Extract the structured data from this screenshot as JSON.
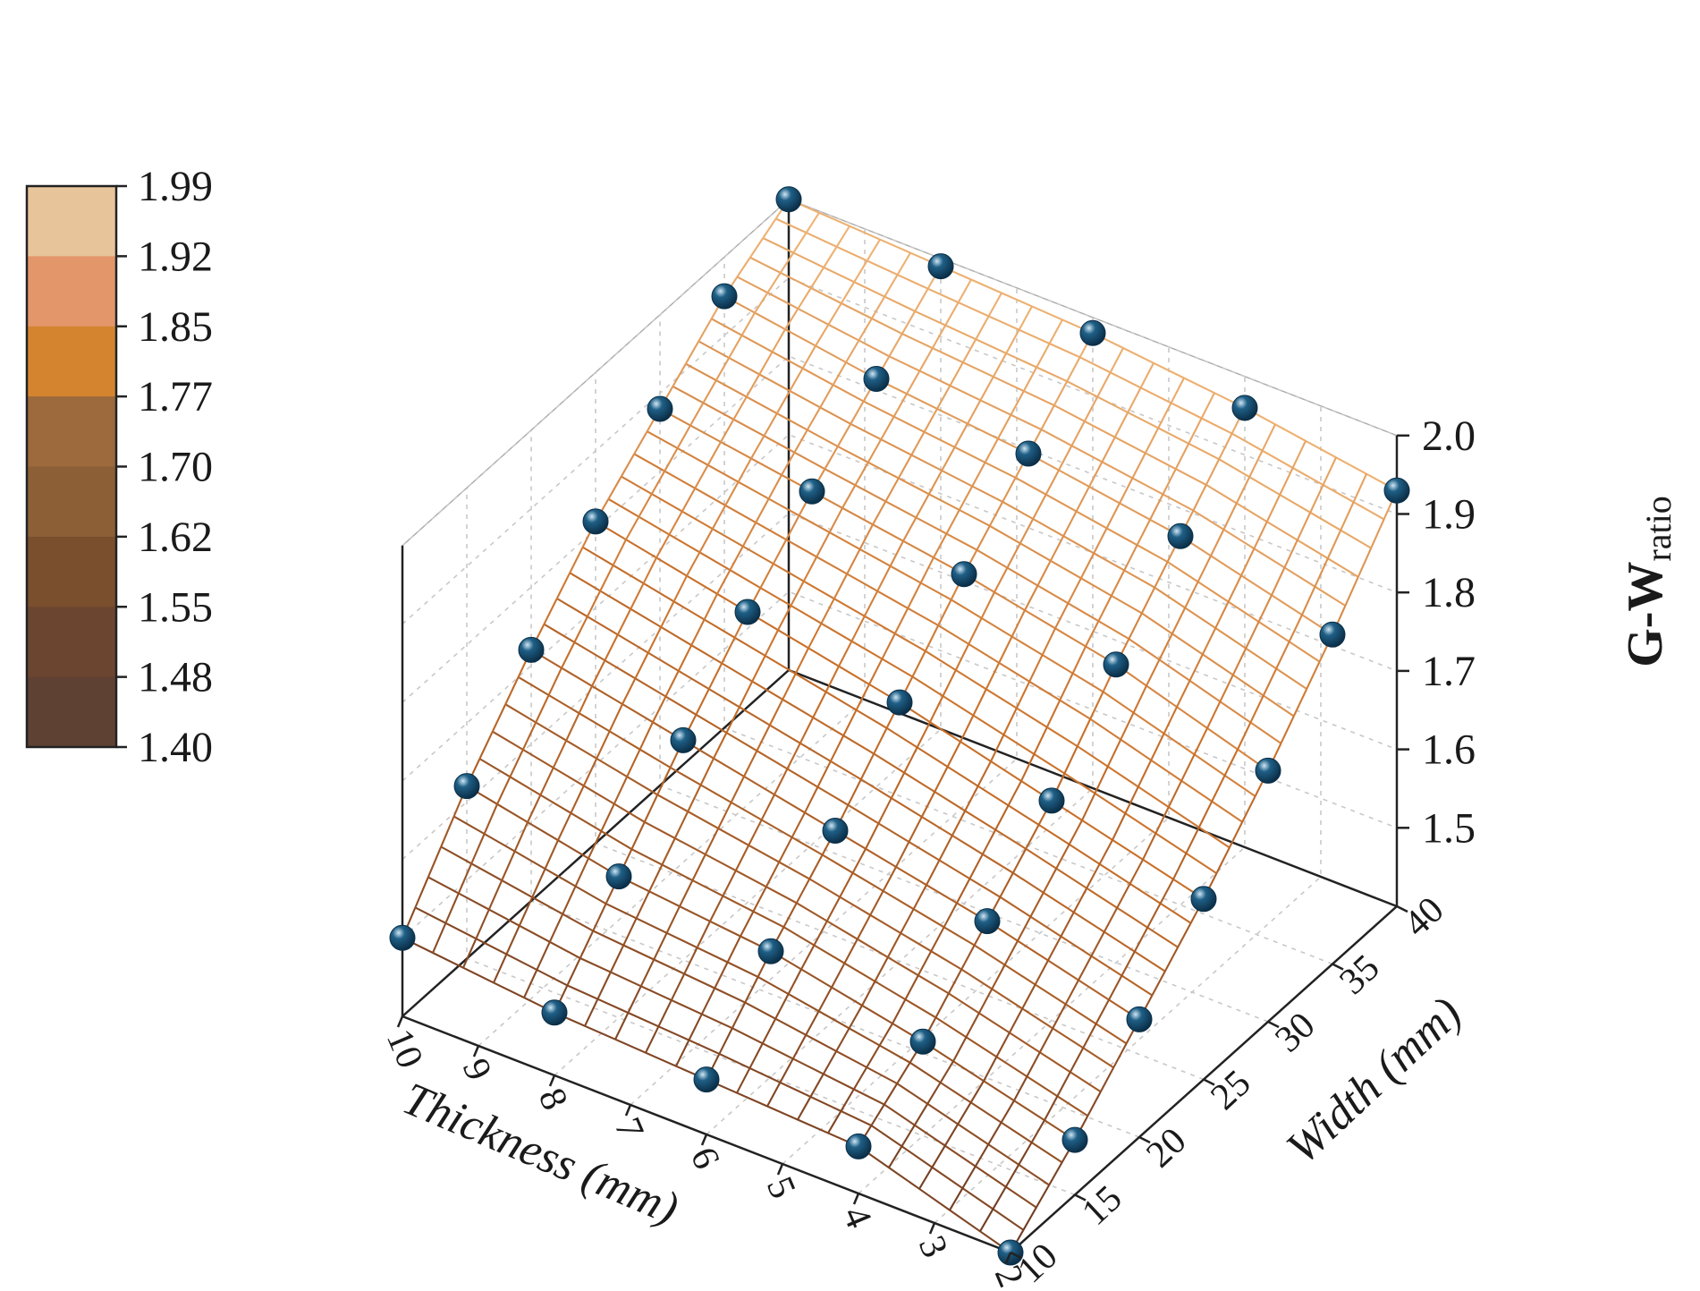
{
  "chart_data": {
    "type": "surface3d",
    "x_axis": {
      "label": "Thickness (mm)",
      "range": [
        2,
        10
      ],
      "ticks": [
        "10",
        "9",
        "8",
        "7",
        "6",
        "5",
        "4",
        "3",
        "2"
      ]
    },
    "y_axis": {
      "label": "Width (mm)",
      "range": [
        10,
        40
      ],
      "ticks": [
        "10",
        "15",
        "20",
        "25",
        "30",
        "35",
        "40"
      ]
    },
    "z_axis": {
      "label_main": "G-W",
      "label_sub": "ratio",
      "range": [
        1.4,
        2.0
      ],
      "ticks": [
        "1.5",
        "1.6",
        "1.7",
        "1.8",
        "1.9",
        "2.0"
      ]
    },
    "colorbar": {
      "labels": [
        "1.99",
        "1.92",
        "1.85",
        "1.77",
        "1.70",
        "1.62",
        "1.55",
        "1.48",
        "1.40"
      ],
      "colors": [
        "#e8c49a",
        "#e3966a",
        "#d4842e",
        "#9c6a3c",
        "#8c5f36",
        "#7a4f2e",
        "#6b4530",
        "#5e4132",
        "#574838"
      ]
    },
    "surface_colors": {
      "low": "#6b3a22",
      "mid": "#c8702a",
      "high": "#f0b678"
    },
    "point_color": "#1f5f86",
    "points": [
      {
        "thickness": 10,
        "width": 10,
        "value": 1.5
      },
      {
        "thickness": 8,
        "width": 10,
        "value": 1.48
      },
      {
        "thickness": 6,
        "width": 10,
        "value": 1.47
      },
      {
        "thickness": 4,
        "width": 10,
        "value": 1.46
      },
      {
        "thickness": 2,
        "width": 10,
        "value": 1.4
      },
      {
        "thickness": 10,
        "width": 15,
        "value": 1.62
      },
      {
        "thickness": 8,
        "width": 15,
        "value": 1.58
      },
      {
        "thickness": 6,
        "width": 15,
        "value": 1.56
      },
      {
        "thickness": 4,
        "width": 15,
        "value": 1.52
      },
      {
        "thickness": 2,
        "width": 15,
        "value": 1.47
      },
      {
        "thickness": 10,
        "width": 20,
        "value": 1.72
      },
      {
        "thickness": 8,
        "width": 20,
        "value": 1.68
      },
      {
        "thickness": 6,
        "width": 20,
        "value": 1.64
      },
      {
        "thickness": 4,
        "width": 20,
        "value": 1.6
      },
      {
        "thickness": 2,
        "width": 20,
        "value": 1.55
      },
      {
        "thickness": 10,
        "width": 25,
        "value": 1.81
      },
      {
        "thickness": 8,
        "width": 25,
        "value": 1.77
      },
      {
        "thickness": 6,
        "width": 25,
        "value": 1.73
      },
      {
        "thickness": 4,
        "width": 25,
        "value": 1.68
      },
      {
        "thickness": 2,
        "width": 25,
        "value": 1.63
      },
      {
        "thickness": 10,
        "width": 30,
        "value": 1.88
      },
      {
        "thickness": 8,
        "width": 30,
        "value": 1.85
      },
      {
        "thickness": 6,
        "width": 30,
        "value": 1.82
      },
      {
        "thickness": 4,
        "width": 30,
        "value": 1.78
      },
      {
        "thickness": 2,
        "width": 30,
        "value": 1.72
      },
      {
        "thickness": 10,
        "width": 35,
        "value": 1.95
      },
      {
        "thickness": 8,
        "width": 35,
        "value": 1.92
      },
      {
        "thickness": 6,
        "width": 35,
        "value": 1.9
      },
      {
        "thickness": 4,
        "width": 35,
        "value": 1.87
      },
      {
        "thickness": 2,
        "width": 35,
        "value": 1.82
      },
      {
        "thickness": 10,
        "width": 40,
        "value": 2.0
      },
      {
        "thickness": 8,
        "width": 40,
        "value": 1.99
      },
      {
        "thickness": 6,
        "width": 40,
        "value": 1.98
      },
      {
        "thickness": 4,
        "width": 40,
        "value": 1.96
      },
      {
        "thickness": 2,
        "width": 40,
        "value": 1.93
      }
    ]
  }
}
